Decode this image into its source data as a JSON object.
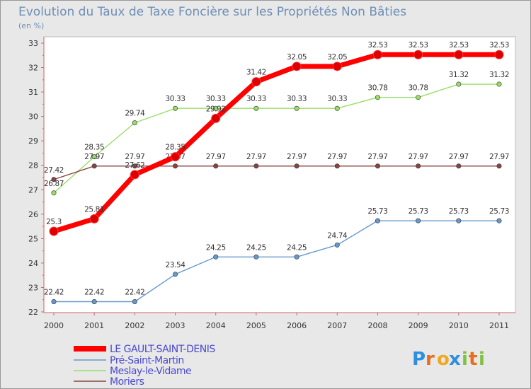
{
  "chart_data": {
    "type": "line",
    "title": "Evolution du Taux de Taxe Foncière sur les Propriétés Non Bâties",
    "subtitle": "(en %)",
    "xlabel": "",
    "ylabel": "",
    "x": [
      "2000",
      "2001",
      "2002",
      "2003",
      "2004",
      "2005",
      "2006",
      "2007",
      "2008",
      "2009",
      "2010",
      "2011"
    ],
    "ylim": [
      22,
      33
    ],
    "yticks": [
      22,
      23,
      24,
      25,
      26,
      27,
      28,
      29,
      30,
      31,
      32,
      33
    ],
    "grid": false,
    "legend_position": "bottom-left",
    "series": [
      {
        "name": "LE GAULT-SAINT-DENIS",
        "color": "#ff0000",
        "values": [
          25.3,
          25.81,
          27.62,
          28.35,
          29.92,
          31.42,
          32.05,
          32.05,
          32.53,
          32.53,
          32.53,
          32.53
        ],
        "labels": [
          "25.3",
          "25.81",
          "27.62",
          "28.35",
          "29.92",
          "31.42",
          "32.05",
          "32.05",
          "32.53",
          "32.53",
          "32.53",
          "32.53"
        ]
      },
      {
        "name": "Pré-Saint-Martin",
        "color": "#6699cc",
        "values": [
          22.42,
          22.42,
          22.42,
          23.54,
          24.25,
          24.25,
          24.25,
          24.74,
          25.73,
          25.73,
          25.73,
          25.73
        ],
        "labels": [
          "22.42",
          "22.42",
          "22.42",
          "23.54",
          "24.25",
          "24.25",
          "24.25",
          "24.74",
          "25.73",
          "25.73",
          "25.73",
          "25.73"
        ]
      },
      {
        "name": "Meslay-le-Vidame",
        "color": "#99dd66",
        "values": [
          26.87,
          28.35,
          29.74,
          30.33,
          30.33,
          30.33,
          30.33,
          30.33,
          30.78,
          30.78,
          31.32,
          31.32
        ],
        "labels": [
          "26.87",
          "28.35",
          "29.74",
          "30.33",
          "30.33",
          "30.33",
          "30.33",
          "30.33",
          "30.78",
          "30.78",
          "31.32",
          "31.32"
        ]
      },
      {
        "name": "Moriers",
        "color": "#884444",
        "values": [
          27.42,
          27.97,
          27.97,
          27.97,
          27.97,
          27.97,
          27.97,
          27.97,
          27.97,
          27.97,
          27.97,
          27.97
        ],
        "labels": [
          "27.42",
          "27.97",
          "27.97",
          "27.97",
          "27.97",
          "27.97",
          "27.97",
          "27.97",
          "27.97",
          "27.97",
          "27.97",
          "27.97"
        ]
      }
    ]
  },
  "logo": {
    "text": "Proxiti",
    "letters": [
      "P",
      "r",
      "o",
      "x",
      "i",
      "t",
      "i"
    ],
    "colors": [
      "#2d8fe0",
      "#e86d1f",
      "#f2a81d",
      "#2d8fe0",
      "#7ec242",
      "#e86d1f",
      "#7ec242"
    ]
  }
}
